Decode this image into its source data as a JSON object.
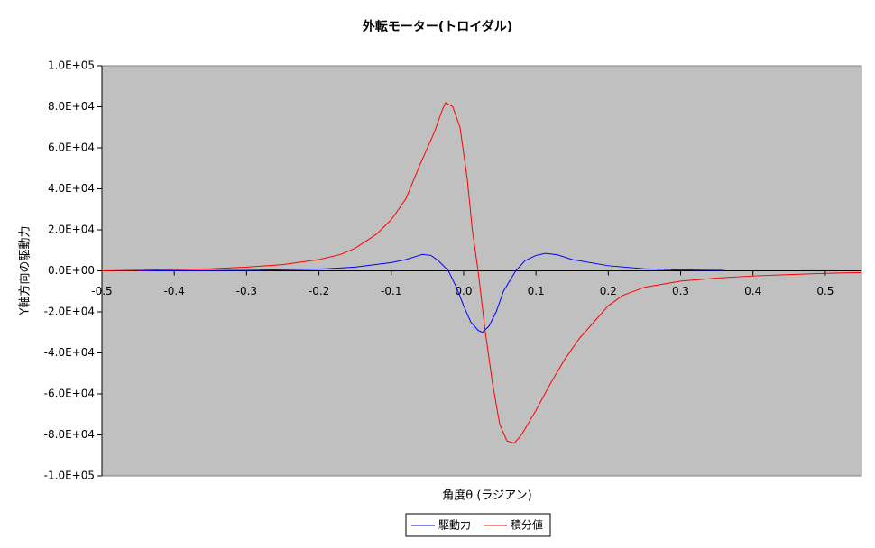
{
  "chart_data": {
    "type": "line",
    "title": "外転モーター(トロイダル)",
    "x_label": "角度θ (ラジアン)",
    "y_label": "Y軸方向の駆動力",
    "xlim": [
      -0.5,
      0.55
    ],
    "ylim": [
      -100000,
      100000
    ],
    "xticks": [
      -0.5,
      -0.4,
      -0.3,
      -0.2,
      -0.1,
      {
        "value": 0,
        "label": "0.0"
      },
      0.1,
      0.2,
      0.3,
      0.4,
      0.5
    ],
    "yticks": [
      {
        "value": 100000,
        "label": "1.0E+05"
      },
      {
        "value": 80000,
        "label": "8.0E+04"
      },
      {
        "value": 60000,
        "label": "6.0E+04"
      },
      {
        "value": 40000,
        "label": "4.0E+04"
      },
      {
        "value": 20000,
        "label": "2.0E+04"
      },
      {
        "value": 0,
        "label": "0.0E+00"
      },
      {
        "value": -20000,
        "label": "-2.0E+04"
      },
      {
        "value": -40000,
        "label": "-4.0E+04"
      },
      {
        "value": -60000,
        "label": "-6.0E+04"
      },
      {
        "value": -80000,
        "label": "-8.0E+04"
      },
      {
        "value": -100000,
        "label": "-1.0E+05"
      }
    ],
    "plot_background": "#c0c0c0",
    "legend": "bottom",
    "series": [
      {
        "name": "駆動力",
        "color": "#0000ff",
        "x": [
          -0.45,
          -0.3,
          -0.2,
          -0.15,
          -0.1,
          -0.08,
          -0.066,
          -0.057,
          -0.045,
          -0.035,
          -0.021,
          -0.01,
          0,
          0.01,
          0.02,
          0.026,
          0.035,
          0.045,
          0.055,
          0.072,
          0.085,
          0.1,
          0.113,
          0.13,
          0.15,
          0.2,
          0.25,
          0.3,
          0.36
        ],
        "values": [
          0,
          200,
          800,
          1800,
          4000,
          5500,
          7000,
          8000,
          7500,
          5000,
          0,
          -8000,
          -17000,
          -25000,
          -29000,
          -30000,
          -27000,
          -20000,
          -10000,
          0,
          5000,
          7500,
          8500,
          7800,
          5500,
          2500,
          1000,
          400,
          200
        ]
      },
      {
        "name": "積分値",
        "color": "#ff0000",
        "x": [
          -0.5,
          -0.45,
          -0.4,
          -0.35,
          -0.3,
          -0.25,
          -0.2,
          -0.17,
          -0.15,
          -0.12,
          -0.1,
          -0.08,
          -0.06,
          -0.04,
          -0.03,
          -0.025,
          -0.015,
          -0.005,
          0.005,
          0.012,
          0.02,
          0.03,
          0.04,
          0.05,
          0.06,
          0.07,
          0.08,
          0.1,
          0.12,
          0.14,
          0.16,
          0.18,
          0.2,
          0.22,
          0.25,
          0.3,
          0.35,
          0.4,
          0.45,
          0.5,
          0.55
        ],
        "values": [
          0,
          300,
          600,
          1000,
          1800,
          3000,
          5500,
          8000,
          11000,
          18000,
          25000,
          35000,
          52000,
          68000,
          78000,
          82000,
          80000,
          70000,
          45000,
          20000,
          0,
          -30000,
          -55000,
          -75000,
          -83000,
          -84000,
          -80000,
          -68000,
          -55000,
          -43000,
          -33000,
          -25000,
          -17000,
          -12000,
          -8000,
          -5000,
          -3500,
          -2500,
          -1800,
          -1200,
          -800
        ]
      }
    ]
  }
}
